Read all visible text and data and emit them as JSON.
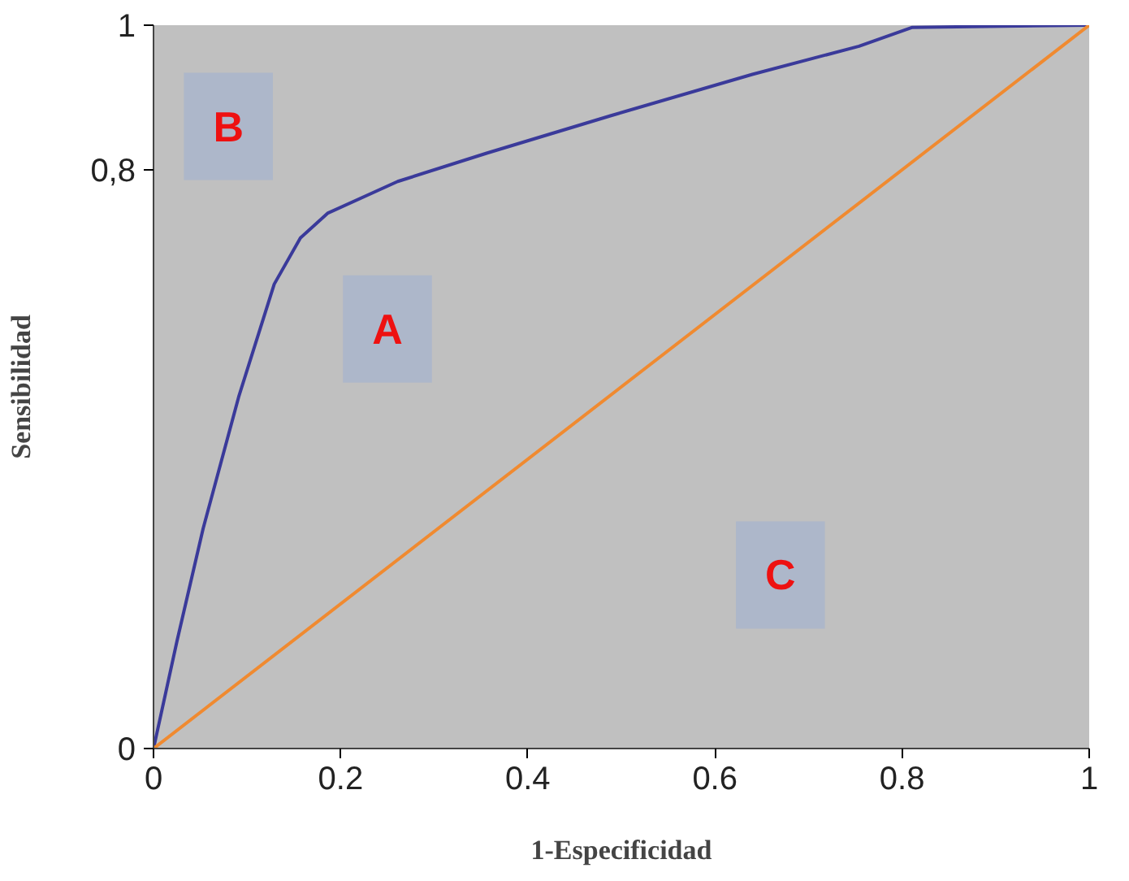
{
  "chart_data": {
    "type": "line",
    "xlabel": "1-Especificidad",
    "ylabel": "Sensibilidad",
    "xlim": [
      0,
      1
    ],
    "ylim": [
      0,
      1
    ],
    "xticks": [
      0,
      {
        "value": 0.2,
        "label": "0.2"
      },
      {
        "value": 0.4,
        "label": "0.4"
      },
      {
        "value": 0.6,
        "label": "0.6"
      },
      {
        "value": 0.8,
        "label": "0.8"
      },
      1
    ],
    "yticks": [
      0,
      {
        "value": 0.8,
        "label": "0,8"
      },
      1
    ],
    "grid": false,
    "series": [
      {
        "color": "#3a3a9a",
        "x": [
          0,
          0.025,
          0.053,
          0.091,
          0.129,
          0.157,
          0.186,
          0.261,
          0.356,
          0.489,
          0.64,
          0.754,
          0.811,
          1
        ],
        "values": [
          0,
          0.148,
          0.304,
          0.486,
          0.642,
          0.706,
          0.74,
          0.784,
          0.823,
          0.875,
          0.932,
          0.971,
          0.997,
          1
        ]
      },
      {
        "color": "#f08a30",
        "x": [
          0,
          1
        ],
        "values": [
          0,
          1
        ]
      }
    ],
    "annotations": [
      "B",
      "A",
      "C"
    ]
  }
}
